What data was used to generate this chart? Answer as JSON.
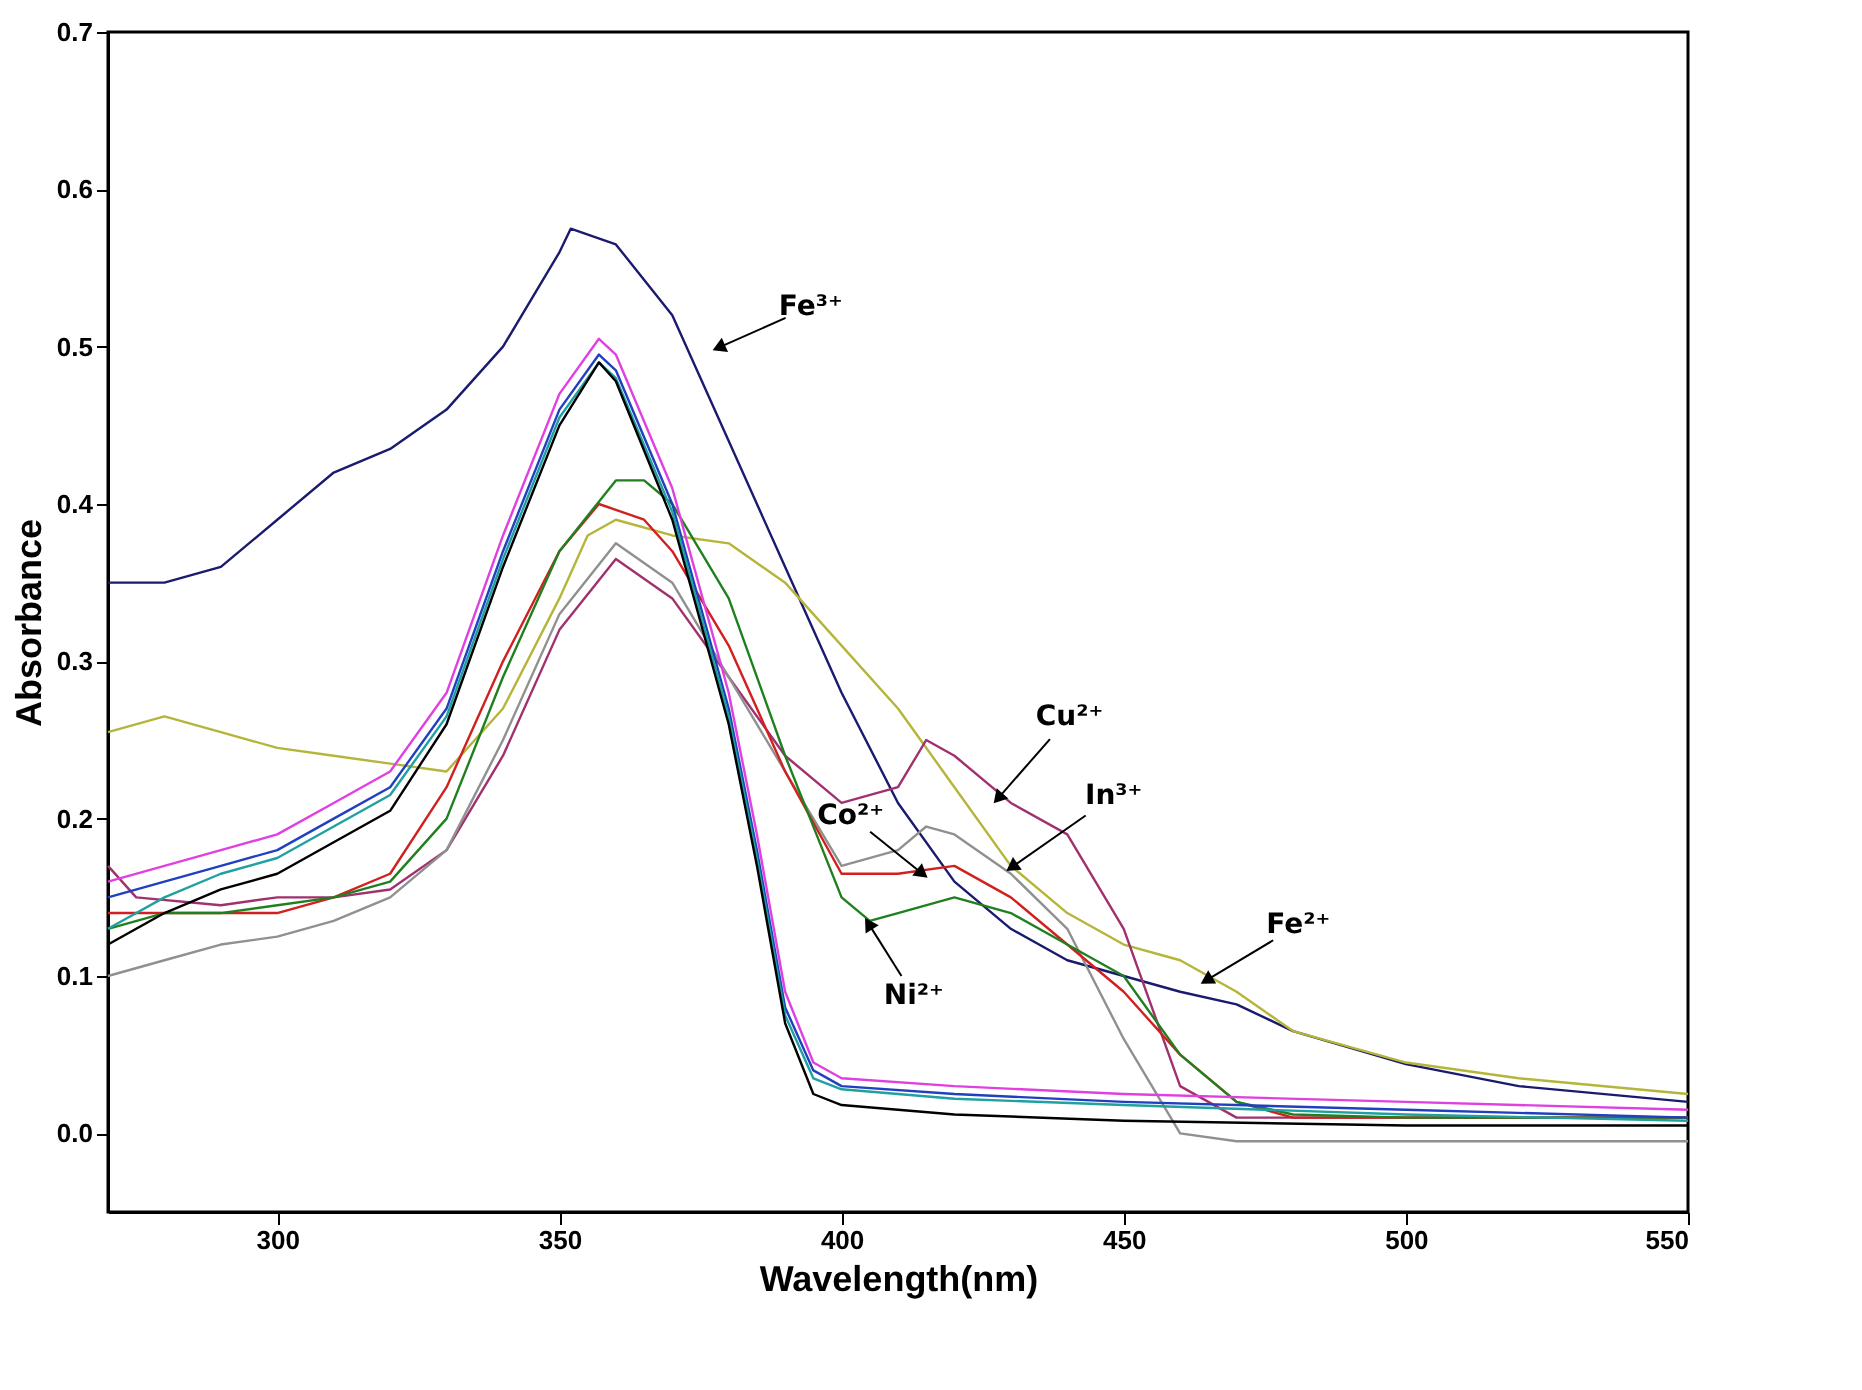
{
  "chart_data": {
    "type": "line",
    "xlabel": "Wavelength(nm)",
    "ylabel": "Absorbance",
    "xlim": [
      270,
      550
    ],
    "ylim": [
      -0.05,
      0.7
    ],
    "xticks": [
      300,
      350,
      400,
      450,
      500,
      550
    ],
    "yticks": [
      {
        "value": 0,
        "label": "0.0"
      },
      {
        "value": 0.1,
        "label": "0.1"
      },
      {
        "value": 0.2,
        "label": "0.2"
      },
      {
        "value": 0.3,
        "label": "0.3"
      },
      {
        "value": 0.4,
        "label": "0.4"
      },
      {
        "value": 0.5,
        "label": "0.5"
      },
      {
        "value": 0.6,
        "label": "0.6"
      },
      {
        "value": 0.7,
        "label": "0.7"
      }
    ],
    "grid": false,
    "legend": false,
    "marker": "none",
    "line_style": "solid",
    "series": [
      {
        "color": "#1a1a6e",
        "x": [
          270,
          280,
          290,
          300,
          310,
          320,
          330,
          340,
          350,
          352,
          360,
          370,
          380,
          390,
          400,
          410,
          420,
          430,
          440,
          450,
          460,
          470,
          480,
          500,
          520,
          550
        ],
        "values": [
          0.35,
          0.35,
          0.36,
          0.39,
          0.42,
          0.435,
          0.46,
          0.5,
          0.56,
          0.575,
          0.565,
          0.52,
          0.44,
          0.36,
          0.28,
          0.21,
          0.16,
          0.13,
          0.11,
          0.1,
          0.09,
          0.082,
          0.065,
          0.044,
          0.03,
          0.02
        ]
      },
      {
        "color": "#b5b53a",
        "x": [
          270,
          280,
          290,
          300,
          310,
          320,
          330,
          340,
          350,
          355,
          360,
          370,
          380,
          390,
          400,
          410,
          420,
          430,
          440,
          450,
          460,
          470,
          480,
          500,
          520,
          550
        ],
        "values": [
          0.255,
          0.265,
          0.255,
          0.245,
          0.24,
          0.235,
          0.23,
          0.27,
          0.34,
          0.38,
          0.39,
          0.38,
          0.375,
          0.35,
          0.31,
          0.27,
          0.22,
          0.17,
          0.14,
          0.12,
          0.11,
          0.09,
          0.065,
          0.045,
          0.035,
          0.025
        ]
      },
      {
        "color": "#a0306e",
        "x": [
          270,
          275,
          290,
          300,
          310,
          320,
          330,
          340,
          350,
          360,
          370,
          380,
          390,
          400,
          410,
          415,
          420,
          430,
          440,
          450,
          460,
          470,
          500,
          550
        ],
        "values": [
          0.17,
          0.15,
          0.145,
          0.15,
          0.15,
          0.155,
          0.18,
          0.24,
          0.32,
          0.365,
          0.34,
          0.29,
          0.24,
          0.21,
          0.22,
          0.25,
          0.24,
          0.21,
          0.19,
          0.13,
          0.03,
          0.01,
          0.01,
          0.01
        ]
      },
      {
        "color": "#909090",
        "x": [
          270,
          280,
          290,
          300,
          310,
          320,
          330,
          340,
          350,
          360,
          370,
          380,
          390,
          400,
          410,
          415,
          420,
          430,
          440,
          450,
          460,
          470,
          500,
          550
        ],
        "values": [
          0.1,
          0.11,
          0.12,
          0.125,
          0.135,
          0.15,
          0.18,
          0.25,
          0.33,
          0.375,
          0.35,
          0.29,
          0.23,
          0.17,
          0.18,
          0.195,
          0.19,
          0.165,
          0.13,
          0.06,
          0.0,
          -0.005,
          -0.005,
          -0.005
        ]
      },
      {
        "color": "#d02020",
        "x": [
          270,
          290,
          300,
          310,
          320,
          330,
          340,
          350,
          357,
          365,
          370,
          380,
          390,
          400,
          410,
          420,
          430,
          440,
          450,
          460,
          470,
          480,
          500,
          550
        ],
        "values": [
          0.14,
          0.14,
          0.14,
          0.15,
          0.165,
          0.22,
          0.3,
          0.37,
          0.4,
          0.39,
          0.37,
          0.31,
          0.23,
          0.165,
          0.165,
          0.17,
          0.15,
          0.12,
          0.09,
          0.05,
          0.02,
          0.01,
          0.01,
          0.01
        ]
      },
      {
        "color": "#208020",
        "x": [
          270,
          280,
          290,
          300,
          310,
          320,
          330,
          340,
          350,
          360,
          365,
          370,
          380,
          390,
          400,
          405,
          410,
          420,
          430,
          440,
          450,
          460,
          470,
          480,
          500,
          550
        ],
        "values": [
          0.13,
          0.14,
          0.14,
          0.145,
          0.15,
          0.16,
          0.2,
          0.29,
          0.37,
          0.415,
          0.415,
          0.4,
          0.34,
          0.24,
          0.15,
          0.135,
          0.14,
          0.15,
          0.14,
          0.12,
          0.1,
          0.05,
          0.02,
          0.012,
          0.01,
          0.01
        ]
      },
      {
        "color": "#e040e0",
        "x": [
          270,
          280,
          290,
          300,
          310,
          320,
          330,
          340,
          350,
          357,
          360,
          370,
          380,
          385,
          390,
          395,
          400,
          420,
          450,
          500,
          550
        ],
        "values": [
          0.16,
          0.17,
          0.18,
          0.19,
          0.21,
          0.23,
          0.28,
          0.38,
          0.47,
          0.505,
          0.495,
          0.41,
          0.28,
          0.19,
          0.09,
          0.045,
          0.035,
          0.03,
          0.025,
          0.02,
          0.015
        ]
      },
      {
        "color": "#2040c0",
        "x": [
          270,
          280,
          290,
          300,
          310,
          320,
          330,
          340,
          350,
          357,
          360,
          370,
          380,
          385,
          390,
          395,
          400,
          420,
          450,
          500,
          550
        ],
        "values": [
          0.15,
          0.16,
          0.17,
          0.18,
          0.2,
          0.22,
          0.27,
          0.37,
          0.46,
          0.495,
          0.485,
          0.4,
          0.27,
          0.18,
          0.08,
          0.04,
          0.03,
          0.025,
          0.02,
          0.015,
          0.01
        ]
      },
      {
        "color": "#20a0a0",
        "x": [
          270,
          280,
          290,
          300,
          310,
          320,
          330,
          340,
          350,
          357,
          360,
          370,
          380,
          385,
          390,
          395,
          400,
          420,
          450,
          500,
          550
        ],
        "values": [
          0.13,
          0.15,
          0.165,
          0.175,
          0.195,
          0.215,
          0.265,
          0.365,
          0.455,
          0.49,
          0.48,
          0.395,
          0.265,
          0.175,
          0.075,
          0.035,
          0.028,
          0.022,
          0.018,
          0.012,
          0.008
        ]
      },
      {
        "color": "#000000",
        "x": [
          270,
          280,
          290,
          300,
          310,
          320,
          330,
          340,
          350,
          357,
          360,
          370,
          380,
          385,
          390,
          395,
          400,
          420,
          450,
          500,
          550
        ],
        "values": [
          0.12,
          0.14,
          0.155,
          0.165,
          0.185,
          0.205,
          0.26,
          0.36,
          0.45,
          0.49,
          0.478,
          0.39,
          0.26,
          0.17,
          0.07,
          0.025,
          0.018,
          0.012,
          0.008,
          0.005,
          0.005
        ]
      }
    ],
    "annotations": [
      {
        "text": "Fe³⁺",
        "x": 378.6,
        "y": 0.5
      },
      {
        "text": "Cu²⁺",
        "x": 428,
        "y": 0.214
      },
      {
        "text": "In³⁺",
        "x": 430.5,
        "y": 0.17
      },
      {
        "text": "Fe²⁺",
        "x": 465,
        "y": 0.098
      },
      {
        "text": "Co²⁺",
        "x": 414,
        "y": 0.166
      },
      {
        "text": "Ni²⁺",
        "x": 405,
        "y": 0.132
      }
    ]
  }
}
